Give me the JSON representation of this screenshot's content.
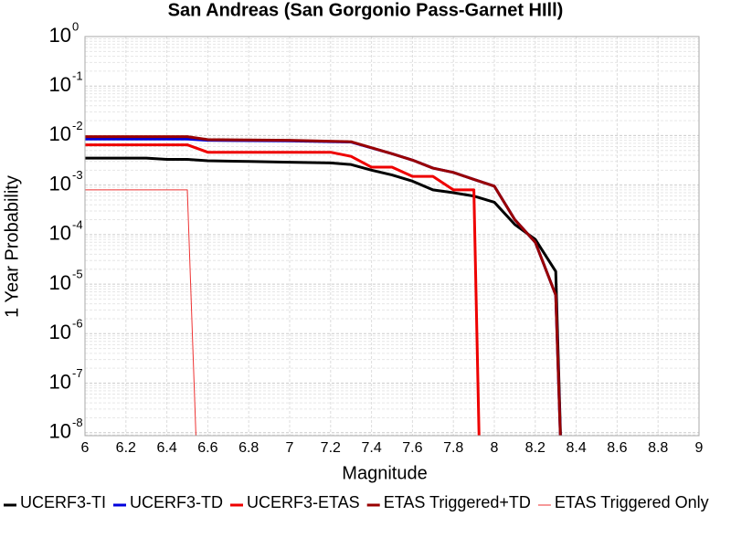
{
  "chart_data": {
    "type": "line",
    "title": "San Andreas (San Gorgonio Pass-Garnet HIll)",
    "x_label": "Magnitude",
    "y_label": "1 Year Probability",
    "log_y": true,
    "grid": true,
    "legend_position": "bottom",
    "xlim": [
      6,
      9
    ],
    "xticks": [
      6,
      6.2,
      6.4,
      6.6,
      6.8,
      7,
      7.2,
      7.4,
      7.6,
      7.8,
      8,
      8.2,
      8.4,
      8.6,
      8.8,
      9
    ],
    "ylim": [
      8.7e-09,
      1
    ],
    "yticks": [
      {
        "value": 1,
        "label": "10",
        "exponent": "0"
      },
      {
        "value": 0.1,
        "label": "10",
        "exponent": "-1"
      },
      {
        "value": 0.01,
        "label": "10",
        "exponent": "-2"
      },
      {
        "value": 0.001,
        "label": "10",
        "exponent": "-3"
      },
      {
        "value": 0.0001,
        "label": "10",
        "exponent": "-4"
      },
      {
        "value": 1e-05,
        "label": "10",
        "exponent": "-5"
      },
      {
        "value": 1e-06,
        "label": "10",
        "exponent": "-6"
      },
      {
        "value": 1e-07,
        "label": "10",
        "exponent": "-7"
      },
      {
        "value": 1e-08,
        "label": "10",
        "exponent": "-8"
      }
    ],
    "series": [
      {
        "name": "UCERF3-TI",
        "color": "#000000",
        "width": 3,
        "x": [
          6,
          6.3,
          6.4,
          6.5,
          6.6,
          6.8,
          7,
          7.2,
          7.3,
          7.4,
          7.5,
          7.6,
          7.7,
          7.8,
          7.9,
          8,
          8.1,
          8.2,
          8.3,
          8.33
        ],
        "values": [
          0.0035,
          0.0035,
          0.0033,
          0.0033,
          0.0031,
          0.003,
          0.0029,
          0.0028,
          0.0026,
          0.002,
          0.0016,
          0.0012,
          0.0008,
          0.0007,
          0.0006,
          0.00045,
          0.00016,
          8e-05,
          1.8e-05,
          1e-09
        ]
      },
      {
        "name": "UCERF3-TD",
        "color": "#0000dd",
        "width": 3,
        "x": [
          6,
          6.5,
          6.6,
          7,
          7.3,
          7.5,
          7.6,
          7.7,
          7.8,
          7.9,
          8,
          8.1,
          8.2,
          8.3,
          8.33
        ],
        "values": [
          0.0085,
          0.0085,
          0.008,
          0.0078,
          0.0074,
          0.0043,
          0.0032,
          0.0022,
          0.0018,
          0.0013,
          0.00095,
          0.0002,
          7e-05,
          6e-06,
          1e-09
        ]
      },
      {
        "name": "UCERF3-ETAS",
        "color": "#ee0000",
        "width": 3,
        "x": [
          6,
          6.5,
          6.6,
          7.2,
          7.3,
          7.4,
          7.5,
          7.6,
          7.7,
          7.8,
          7.9,
          7.93
        ],
        "values": [
          0.0065,
          0.0065,
          0.0046,
          0.0046,
          0.0038,
          0.0023,
          0.0023,
          0.0015,
          0.0015,
          0.0008,
          0.0008,
          1e-09
        ]
      },
      {
        "name": "ETAS Triggered+TD",
        "color": "#990000",
        "width": 3,
        "x": [
          6,
          6.5,
          6.6,
          7,
          7.3,
          7.5,
          7.6,
          7.7,
          7.8,
          7.9,
          8,
          8.1,
          8.2,
          8.3,
          8.33
        ],
        "values": [
          0.0095,
          0.0095,
          0.0083,
          0.008,
          0.0075,
          0.0043,
          0.0032,
          0.0022,
          0.0018,
          0.0013,
          0.00095,
          0.0002,
          7e-05,
          6e-06,
          1e-09
        ]
      },
      {
        "name": "ETAS Triggered Only",
        "color": "#ee3333",
        "width": 1,
        "x": [
          6,
          6.5,
          6.55
        ],
        "values": [
          0.0008,
          0.0008,
          1e-09
        ]
      }
    ]
  }
}
